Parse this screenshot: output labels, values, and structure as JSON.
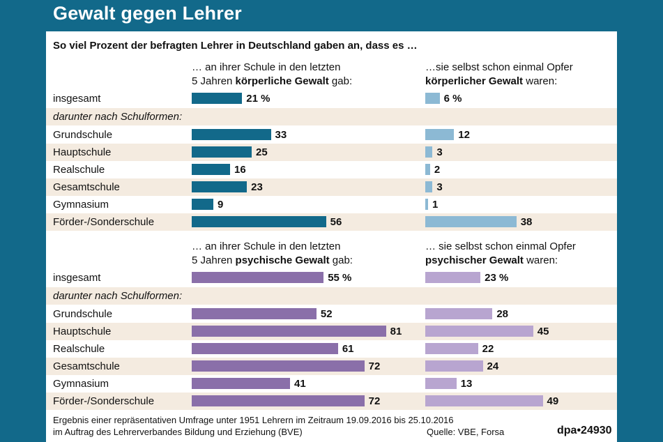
{
  "title": "Gewalt gegen Lehrer",
  "subtitle": "So viel Prozent der befragten Lehrer in Deutschland gaben an, dass es …",
  "colors": {
    "physical_left": "#12698a",
    "physical_right": "#8cb9d4",
    "psych_left": "#8a6fa9",
    "psych_right": "#b8a5d0",
    "band": "#f4ebe0"
  },
  "section_physical": {
    "left_header_line1": "… an ihrer Schule in den letzten",
    "left_header_line2_pre": "5 Jahren ",
    "left_header_line2_bold": "körperliche Gewalt",
    "left_header_line2_post": " gab:",
    "right_header_line1": "…sie selbst schon einmal Opfer",
    "right_header_line2_bold": "körperlicher Gewalt",
    "right_header_line2_post": " waren:"
  },
  "section_psych": {
    "left_header_line1": "… an ihrer Schule in den letzten",
    "left_header_line2_pre": "5 Jahren ",
    "left_header_line2_bold": "psychische Gewalt",
    "left_header_line2_post": " gab:",
    "right_header_line1": "… sie selbst schon einmal Opfer",
    "right_header_line2_bold": "psychischer Gewalt",
    "right_header_line2_post": " waren:"
  },
  "labels": {
    "overall": "insgesamt",
    "subgroup_heading": "darunter nach Schulformen:"
  },
  "chart_data": {
    "type": "bar",
    "unit": "%",
    "categories": [
      "insgesamt",
      "Grundschule",
      "Hauptschule",
      "Realschule",
      "Gesamtschule",
      "Gymnasium",
      "Förder-/Sonderschule"
    ],
    "series": [
      {
        "name": "an ihrer Schule in den letzten 5 Jahren körperliche Gewalt gab",
        "values": [
          21,
          33,
          25,
          16,
          23,
          9,
          56
        ],
        "labels": [
          "21 %",
          "33",
          "25",
          "16",
          "23",
          "9",
          "56"
        ]
      },
      {
        "name": "sie selbst schon einmal Opfer körperlicher Gewalt waren",
        "values": [
          6,
          12,
          3,
          2,
          3,
          1,
          38
        ],
        "labels": [
          "6 %",
          "12",
          "3",
          "2",
          "3",
          "1",
          "38"
        ]
      },
      {
        "name": "an ihrer Schule in den letzten 5 Jahren psychische Gewalt gab",
        "values": [
          55,
          52,
          81,
          61,
          72,
          41,
          72
        ],
        "labels": [
          "55 %",
          "52",
          "81",
          "61",
          "72",
          "41",
          "72"
        ]
      },
      {
        "name": "sie selbst schon einmal Opfer psychischer Gewalt waren",
        "values": [
          23,
          28,
          45,
          22,
          24,
          13,
          49
        ],
        "labels": [
          "23 %",
          "28",
          "45",
          "22",
          "24",
          "13",
          "49"
        ]
      }
    ]
  },
  "footer": {
    "note_line1": "Ergebnis einer repräsentativen Umfrage unter 1951 Lehrern im Zeitraum 19.09.2016 bis 25.10.2016",
    "note_line2": "im Auftrag des Lehrerverbandes Bildung und Erziehung (BVE)",
    "source": "Quelle: VBE, Forsa",
    "brand": "dpa•24930"
  }
}
